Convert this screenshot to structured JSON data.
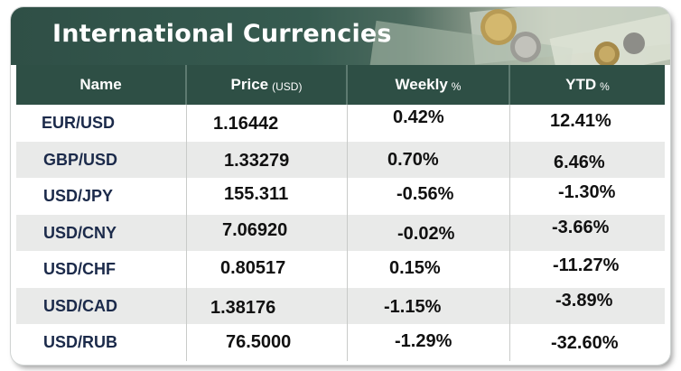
{
  "title": "International Currencies",
  "header": {
    "name": "Name",
    "price": "Price",
    "price_unit": "(USD)",
    "weekly": "Weekly",
    "weekly_unit": "%",
    "ytd": "YTD",
    "ytd_unit": "%"
  },
  "rows": [
    {
      "name": "EUR/USD",
      "price": "1.16442",
      "weekly": "0.42%",
      "ytd": "12.41%"
    },
    {
      "name": "GBP/USD",
      "price": "1.33279",
      "weekly": "0.70%",
      "ytd": "6.46%"
    },
    {
      "name": "USD/JPY",
      "price": "155.311",
      "weekly": "-0.56%",
      "ytd": "-1.30%"
    },
    {
      "name": "USD/CNY",
      "price": "7.06920",
      "weekly": "-0.02%",
      "ytd": "-3.66%"
    },
    {
      "name": "USD/CHF",
      "price": "0.80517",
      "weekly": "0.15%",
      "ytd": "-11.27%"
    },
    {
      "name": "USD/CAD",
      "price": "1.38176",
      "weekly": "-1.15%",
      "ytd": "-3.89%"
    },
    {
      "name": "USD/RUB",
      "price": "76.5000",
      "weekly": "-1.29%",
      "ytd": "-32.60%"
    }
  ],
  "colors": {
    "header_bg": "#2e4f45",
    "row_alt_bg": "#e9eae9",
    "title_text": "#ffffff"
  },
  "icons": {
    "banner_art": "coins-and-banknotes-illustration"
  }
}
